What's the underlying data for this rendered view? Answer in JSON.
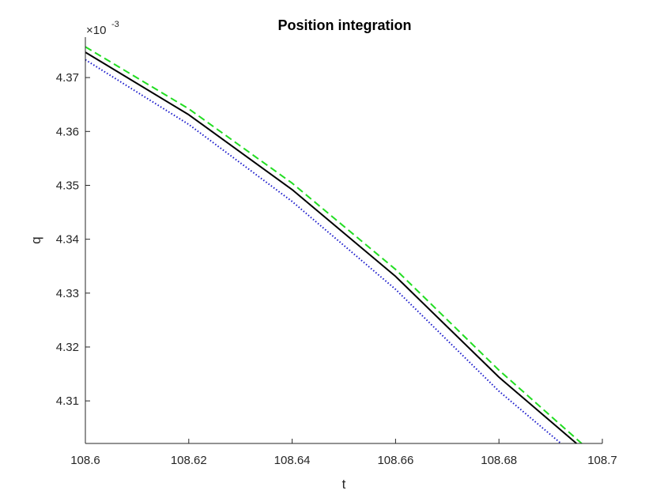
{
  "chart_data": {
    "type": "line",
    "title": "Position integration",
    "xlabel": "t",
    "ylabel": "q",
    "y_multiplier": {
      "base": "×10",
      "exponent": "-3"
    },
    "xlim": [
      108.6,
      108.7
    ],
    "ylim": [
      4.3021,
      4.3775
    ],
    "x_ticks": [
      108.6,
      108.62,
      108.64,
      108.66,
      108.68,
      108.7
    ],
    "x_tick_labels": [
      "108.6",
      "108.62",
      "108.64",
      "108.66",
      "108.68",
      "108.7"
    ],
    "y_ticks": [
      4.31,
      4.32,
      4.33,
      4.34,
      4.35,
      4.36,
      4.37
    ],
    "y_tick_labels": [
      "4.31",
      "4.32",
      "4.33",
      "4.34",
      "4.35",
      "4.36",
      "4.37"
    ],
    "grid": false,
    "legend": "none",
    "series": [
      {
        "color": "#22dd22",
        "style": "dashed",
        "points": [
          [
            108.6,
            4.3757
          ],
          [
            108.62,
            4.3642
          ],
          [
            108.64,
            4.3504
          ],
          [
            108.66,
            4.3344
          ],
          [
            108.68,
            4.3157
          ],
          [
            108.696,
            4.3021
          ]
        ]
      },
      {
        "color": "#000000",
        "style": "solid",
        "points": [
          [
            108.6,
            4.3747
          ],
          [
            108.62,
            4.3631
          ],
          [
            108.64,
            4.3492
          ],
          [
            108.66,
            4.3331
          ],
          [
            108.68,
            4.3144
          ],
          [
            108.695,
            4.3021
          ]
        ]
      },
      {
        "color": "#1a1acc",
        "style": "dotted",
        "points": [
          [
            108.6,
            4.3733
          ],
          [
            108.62,
            4.3613
          ],
          [
            108.64,
            4.347
          ],
          [
            108.66,
            4.3307
          ],
          [
            108.68,
            4.3118
          ],
          [
            108.692,
            4.3021
          ]
        ]
      }
    ]
  }
}
